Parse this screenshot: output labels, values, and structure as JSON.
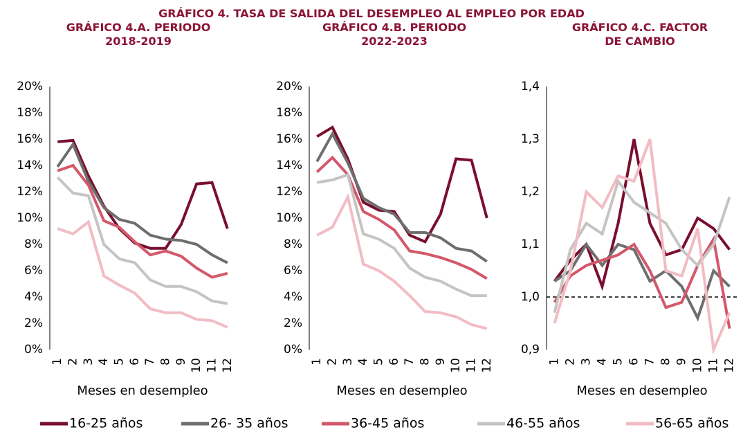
{
  "title": "GRÁFICO 4.  TASA DE SALIDA DEL DESEMPLEO AL EMPLEO POR  EDAD",
  "chart_data": [
    {
      "type": "line",
      "title": "GRÁFICO 4.A. PERIODO 2018-2019",
      "xlabel": "Meses en desempleo",
      "categories": [
        "1",
        "2",
        "3",
        "4",
        "5",
        "6",
        "7",
        "8",
        "9",
        "10",
        "11",
        "12"
      ],
      "ylim": [
        0,
        20
      ],
      "yticks": [
        {
          "value": 0,
          "label": "0%"
        },
        {
          "value": 2,
          "label": "2%"
        },
        {
          "value": 4,
          "label": "4%"
        },
        {
          "value": 6,
          "label": "6%"
        },
        {
          "value": 8,
          "label": "8%"
        },
        {
          "value": 10,
          "label": "10%"
        },
        {
          "value": 12,
          "label": "12%"
        },
        {
          "value": 14,
          "label": "14%"
        },
        {
          "value": 16,
          "label": "16%"
        },
        {
          "value": 18,
          "label": "18%"
        },
        {
          "value": 20,
          "label": "20%"
        }
      ],
      "grid": false,
      "series": [
        {
          "name": "16-25 años",
          "color": "#7a0e2e",
          "values": [
            15.8,
            15.9,
            13.2,
            10.9,
            9.2,
            8.1,
            7.7,
            7.7,
            9.5,
            12.6,
            12.7,
            9.2
          ]
        },
        {
          "name": "26- 35 años",
          "color": "#6e6e6e",
          "values": [
            13.9,
            15.6,
            12.8,
            10.8,
            9.9,
            9.6,
            8.7,
            8.4,
            8.3,
            8.0,
            7.2,
            6.6
          ]
        },
        {
          "name": "36-45 años",
          "color": "#d4586a",
          "values": [
            13.6,
            14.0,
            12.5,
            9.8,
            9.3,
            8.2,
            7.2,
            7.5,
            7.1,
            6.2,
            5.5,
            5.8
          ]
        },
        {
          "name": "46-55 años",
          "color": "#c4c4c4",
          "values": [
            13.1,
            11.9,
            11.7,
            8.0,
            6.9,
            6.6,
            5.3,
            4.8,
            4.8,
            4.4,
            3.7,
            3.5
          ]
        },
        {
          "name": "56-65 años",
          "color": "#f2bcc4",
          "values": [
            9.2,
            8.8,
            9.7,
            5.6,
            4.9,
            4.3,
            3.1,
            2.8,
            2.8,
            2.3,
            2.2,
            1.7
          ]
        }
      ]
    },
    {
      "type": "line",
      "title": "GRÁFICO 4.B. PERIODO 2022-2023",
      "xlabel": "Meses en desempleo",
      "categories": [
        "1",
        "2",
        "3",
        "4",
        "5",
        "6",
        "7",
        "8",
        "9",
        "10",
        "11",
        "12"
      ],
      "ylim": [
        0,
        20
      ],
      "yticks": [
        {
          "value": 0,
          "label": "0%"
        },
        {
          "value": 2,
          "label": "2%"
        },
        {
          "value": 4,
          "label": "4%"
        },
        {
          "value": 6,
          "label": "6%"
        },
        {
          "value": 8,
          "label": "8%"
        },
        {
          "value": 10,
          "label": "10%"
        },
        {
          "value": 12,
          "label": "12%"
        },
        {
          "value": 14,
          "label": "14%"
        },
        {
          "value": 16,
          "label": "16%"
        },
        {
          "value": 18,
          "label": "18%"
        },
        {
          "value": 20,
          "label": "20%"
        }
      ],
      "grid": false,
      "series": [
        {
          "name": "16-25 años",
          "color": "#7a0e2e",
          "values": [
            16.2,
            16.9,
            14.5,
            11.2,
            10.6,
            10.5,
            8.7,
            8.2,
            10.3,
            14.5,
            14.4,
            10.0
          ]
        },
        {
          "name": "26- 35 años",
          "color": "#6e6e6e",
          "values": [
            14.3,
            16.4,
            14.2,
            11.5,
            10.8,
            10.3,
            8.9,
            8.9,
            8.5,
            7.7,
            7.5,
            6.7
          ]
        },
        {
          "name": "36-45 años",
          "color": "#d4586a",
          "values": [
            13.5,
            14.6,
            13.3,
            10.5,
            9.9,
            9.1,
            7.5,
            7.3,
            7.0,
            6.6,
            6.1,
            5.4
          ]
        },
        {
          "name": "46-55 años",
          "color": "#c4c4c4",
          "values": [
            12.7,
            12.9,
            13.3,
            8.8,
            8.4,
            7.7,
            6.2,
            5.5,
            5.2,
            4.6,
            4.1,
            4.1
          ]
        },
        {
          "name": "56-65 años",
          "color": "#f2bcc4",
          "values": [
            8.7,
            9.3,
            11.6,
            6.5,
            6.0,
            5.2,
            4.1,
            2.9,
            2.8,
            2.5,
            1.9,
            1.6
          ]
        }
      ]
    },
    {
      "type": "line",
      "title": "GRÁFICO 4.C. FACTOR DE CAMBIO",
      "xlabel": "Meses en desempleo",
      "categories": [
        "1",
        "2",
        "3",
        "4",
        "5",
        "6",
        "7",
        "8",
        "9",
        "10",
        "11",
        "12"
      ],
      "ylim": [
        0.9,
        1.4
      ],
      "yticks": [
        {
          "value": 0.9,
          "label": "0,9"
        },
        {
          "value": 1.0,
          "label": "1,0"
        },
        {
          "value": 1.1,
          "label": "1,1"
        },
        {
          "value": 1.2,
          "label": "1,2"
        },
        {
          "value": 1.3,
          "label": "1,3"
        },
        {
          "value": 1.4,
          "label": "1,4"
        }
      ],
      "grid": false,
      "hline": 1.0,
      "series": [
        {
          "name": "16-25 años",
          "color": "#7a0e2e",
          "values": [
            1.03,
            1.07,
            1.1,
            1.02,
            1.14,
            1.3,
            1.14,
            1.08,
            1.09,
            1.15,
            1.13,
            1.09
          ]
        },
        {
          "name": "26- 35 años",
          "color": "#6e6e6e",
          "values": [
            1.03,
            1.05,
            1.1,
            1.06,
            1.1,
            1.09,
            1.03,
            1.05,
            1.02,
            0.96,
            1.05,
            1.02
          ]
        },
        {
          "name": "36-45 años",
          "color": "#d4586a",
          "values": [
            0.99,
            1.04,
            1.06,
            1.07,
            1.08,
            1.1,
            1.05,
            0.98,
            0.99,
            1.06,
            1.11,
            0.94
          ]
        },
        {
          "name": "46-55 años",
          "color": "#c4c4c4",
          "values": [
            0.97,
            1.09,
            1.14,
            1.12,
            1.22,
            1.18,
            1.16,
            1.14,
            1.09,
            1.06,
            1.1,
            1.19
          ]
        },
        {
          "name": "56-65 años",
          "color": "#f2bcc4",
          "values": [
            0.95,
            1.05,
            1.2,
            1.17,
            1.23,
            1.22,
            1.3,
            1.05,
            1.04,
            1.13,
            0.9,
            0.97
          ]
        }
      ]
    }
  ]
}
